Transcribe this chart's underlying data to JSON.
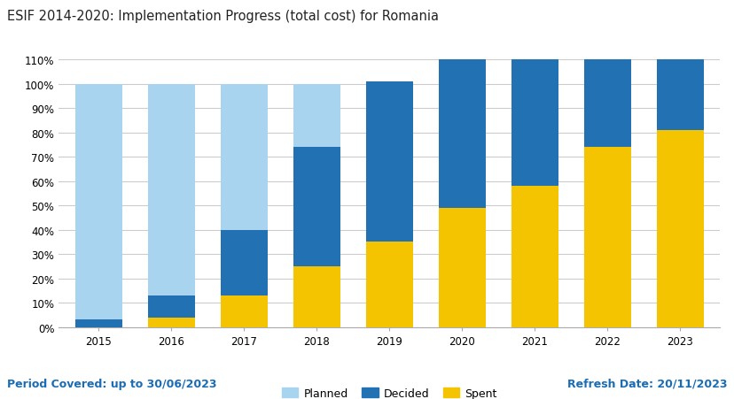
{
  "title": "ESIF 2014-2020: Implementation Progress (total cost) for Romania",
  "years": [
    2015,
    2016,
    2017,
    2018,
    2019,
    2020,
    2021,
    2022,
    2023
  ],
  "planned": [
    100,
    100,
    100,
    100,
    100,
    100,
    100,
    100,
    100
  ],
  "decided": [
    3,
    13,
    40,
    74,
    101,
    110,
    110,
    110,
    110
  ],
  "spent": [
    0,
    4,
    13,
    25,
    35,
    49,
    58,
    74,
    81
  ],
  "color_planned": "#a8d4f0",
  "color_decided": "#2271b3",
  "color_spent": "#f5c400",
  "ylim": [
    0,
    115
  ],
  "yticks": [
    0,
    10,
    20,
    30,
    40,
    50,
    60,
    70,
    80,
    90,
    100,
    110
  ],
  "footer_left": "Period Covered: up to 30/06/2023",
  "footer_right": "Refresh Date: 20/11/2023",
  "footer_color": "#1a6cb5",
  "background_color": "#ffffff",
  "grid_color": "#cccccc",
  "bar_width": 0.65
}
